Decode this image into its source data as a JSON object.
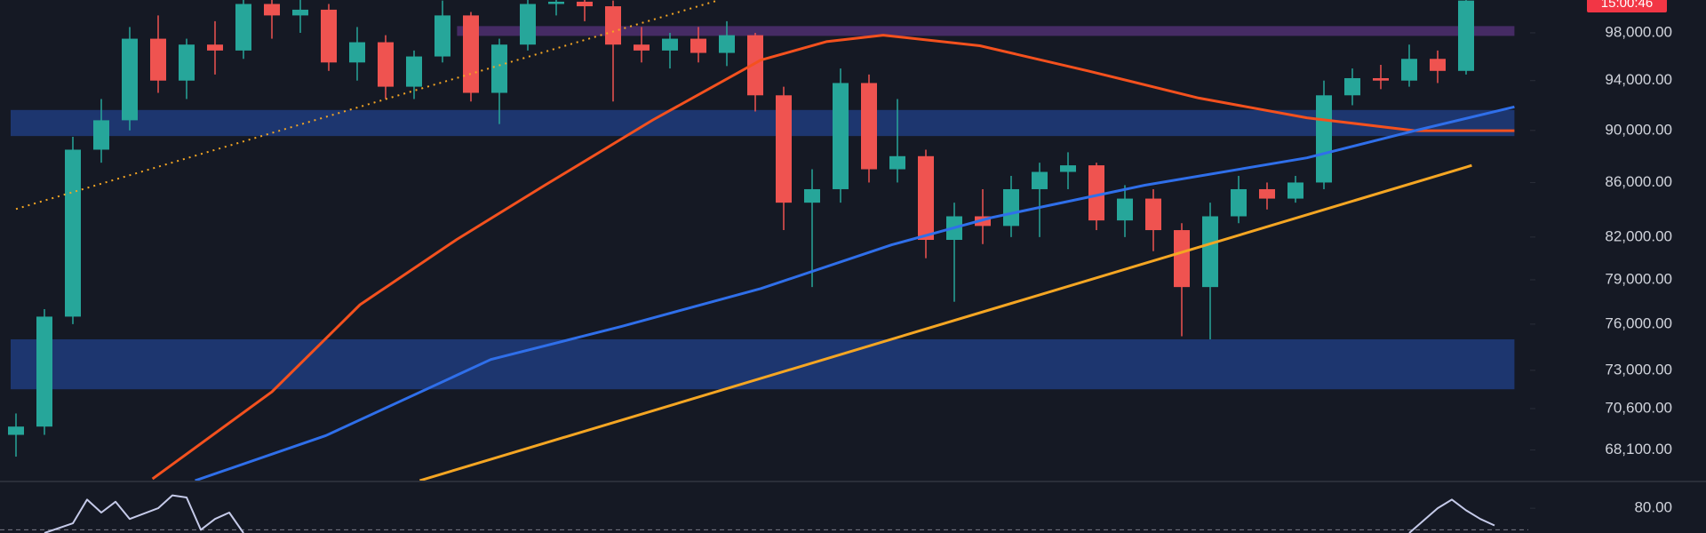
{
  "chart_data": [
    {
      "type": "candlestick",
      "log_scale": true,
      "up_color": "#26a69a",
      "down_color": "#ef5350",
      "open": [
        69000,
        69500,
        76500,
        88500,
        90800,
        97500,
        94000,
        97000,
        96500,
        100500,
        99500,
        100000,
        95500,
        97200,
        93500,
        96000,
        99500,
        93000,
        97000,
        100500,
        100700,
        100300,
        97000,
        96500,
        97500,
        96300,
        97800,
        92800,
        84500,
        85500,
        93800,
        87000,
        88000,
        81800,
        83500,
        82800,
        85500,
        86800,
        87300,
        83200,
        84800,
        82500,
        78500,
        83500,
        85500,
        84800,
        86000,
        92800,
        94200,
        94000,
        95800,
        94800
      ],
      "high": [
        70300,
        77000,
        89500,
        92500,
        98500,
        99500,
        97500,
        99000,
        101000,
        101500,
        101000,
        100500,
        98500,
        97800,
        96500,
        100800,
        99800,
        97500,
        101000,
        101200,
        101500,
        100800,
        98500,
        98000,
        98500,
        99000,
        98000,
        93500,
        87000,
        95000,
        94500,
        92500,
        88500,
        84500,
        85500,
        86500,
        87500,
        88300,
        87500,
        85800,
        85500,
        83000,
        84500,
        86500,
        86000,
        86500,
        94000,
        95000,
        95300,
        97000,
        96500,
        101000
      ],
      "low": [
        67700,
        69000,
        76000,
        87500,
        90000,
        93000,
        92500,
        94500,
        95800,
        97500,
        98000,
        94800,
        94000,
        92500,
        92500,
        95500,
        92300,
        90500,
        96500,
        99500,
        99000,
        92300,
        95500,
        95000,
        95500,
        95200,
        91500,
        82500,
        78500,
        84500,
        86000,
        86000,
        80500,
        77500,
        81500,
        82000,
        82000,
        85500,
        82500,
        82000,
        81000,
        75200,
        75000,
        83000,
        84000,
        84500,
        85500,
        92000,
        93300,
        93500,
        93800,
        94500
      ],
      "close": [
        69500,
        76500,
        88500,
        90800,
        97500,
        94000,
        97000,
        96500,
        100500,
        99500,
        100000,
        95500,
        97200,
        93500,
        96000,
        99500,
        93000,
        97000,
        100500,
        100700,
        100300,
        97000,
        96500,
        97500,
        96300,
        97800,
        92800,
        84500,
        85500,
        93800,
        87000,
        88000,
        81800,
        83500,
        82800,
        85500,
        86800,
        87300,
        83200,
        84800,
        82500,
        78500,
        83500,
        85500,
        84800,
        86000,
        92800,
        94200,
        94000,
        95800,
        94800,
        100800
      ],
      "ylim": [
        66300,
        100850
      ],
      "yticks": [
        {
          "value": 98000,
          "label": "98,000.00"
        },
        {
          "value": 94000,
          "label": "94,000.00"
        },
        {
          "value": 90000,
          "label": "90,000.00"
        },
        {
          "value": 86000,
          "label": "86,000.00"
        },
        {
          "value": 82000,
          "label": "82,000.00"
        },
        {
          "value": 79000,
          "label": "79,000.00"
        },
        {
          "value": 76000,
          "label": "76,000.00"
        },
        {
          "value": 73000,
          "label": "73,000.00"
        },
        {
          "value": 70600,
          "label": "70,600.00"
        },
        {
          "value": 68100,
          "label": "68,100.00"
        }
      ],
      "zones": [
        {
          "color": "#1e3a78",
          "x": [
            0,
            52.7
          ],
          "values": [
            89560,
            91620
          ]
        },
        {
          "color": "#1e3a78",
          "x": [
            0,
            52.7
          ],
          "values": [
            71800,
            75000
          ]
        },
        {
          "color": "#4a2d6b",
          "x": [
            15.7,
            52.7
          ],
          "values": [
            97740,
            98580
          ]
        }
      ],
      "lines": [
        {
          "color": "#f4511e",
          "style": "solid",
          "x": [
            4.8,
            9,
            12.1,
            15.5,
            18.6,
            22.4,
            26.2,
            28.5,
            30.5,
            33.9,
            37.7,
            41.6,
            45.4,
            49.2,
            52.7
          ],
          "values": [
            66400,
            71640,
            77300,
            81830,
            85800,
            90830,
            95700,
            97250,
            97800,
            96900,
            94800,
            92580,
            91000,
            89980,
            89980
          ]
        },
        {
          "color": "#2f6fea",
          "style": "solid",
          "x": [
            6.3,
            10.9,
            16.7,
            21.3,
            26.2,
            30.8,
            34.3,
            39.7,
            45.4,
            49.2,
            52.7
          ],
          "values": [
            66300,
            68960,
            73690,
            75850,
            78400,
            81450,
            83400,
            85800,
            87870,
            89980,
            91870
          ]
        },
        {
          "color": "#f5a623",
          "style": "solid",
          "x": [
            14.2,
            51.2
          ],
          "values": [
            66300,
            87290
          ]
        },
        {
          "color": "#f5a623",
          "style": "dotted",
          "x": [
            0,
            24.7
          ],
          "values": [
            84030,
            100830
          ]
        }
      ],
      "countdown_label": "15:00:46",
      "countdown_color": "#f23645"
    },
    {
      "type": "line",
      "ylim": [
        68.5,
        92
      ],
      "yticks": [
        {
          "value": 80,
          "label": "80.00"
        }
      ],
      "reference_lines": [
        70
      ],
      "series": [
        {
          "color": "#c5cae9",
          "x": [
            1,
            2,
            2.5,
            3,
            3.5,
            4,
            5,
            5.5,
            6,
            6.5,
            7,
            7.5,
            8,
            null,
            49,
            50,
            50.5,
            51,
            51.5,
            52
          ],
          "values": [
            68.5,
            73,
            84,
            78,
            83,
            75,
            80,
            86,
            85,
            70,
            75,
            78,
            68.5,
            null,
            68.5,
            80,
            84,
            79,
            75,
            72
          ]
        }
      ]
    }
  ]
}
